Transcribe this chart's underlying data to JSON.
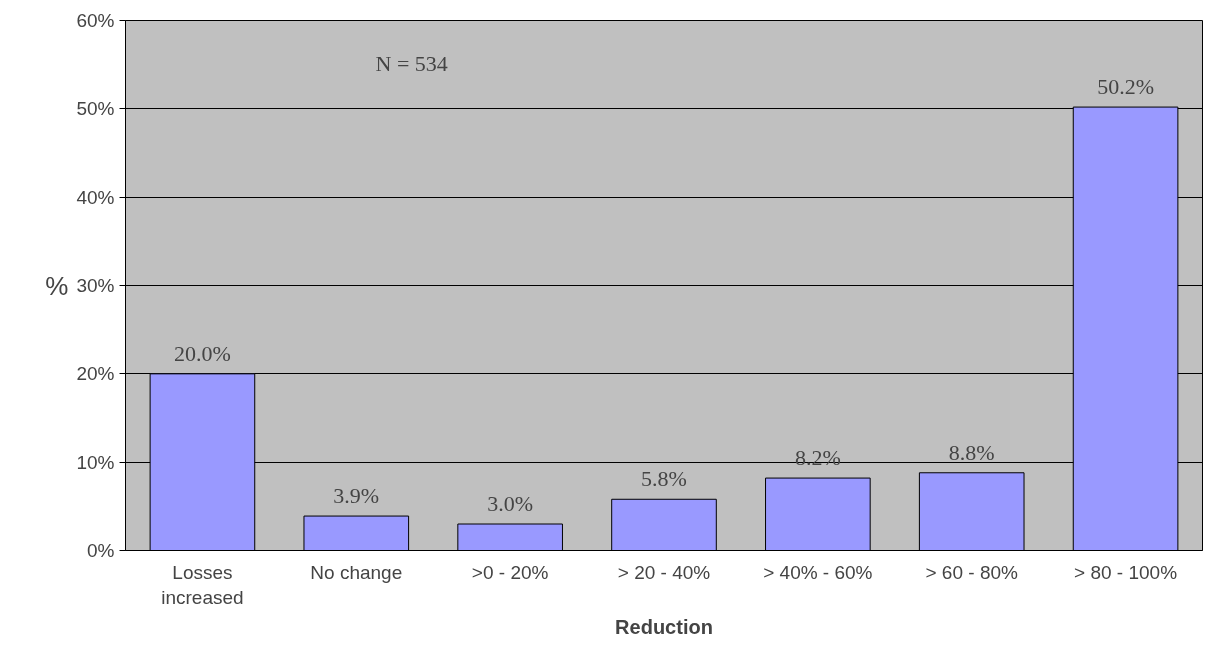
{
  "chart_data": {
    "type": "bar",
    "xlabel": "Reduction",
    "ylabel": "%",
    "categories": [
      "Losses\nincreased",
      "No change",
      ">0 - 20%",
      "> 20 - 40%",
      "> 40% - 60%",
      "> 60 - 80%",
      "> 80 - 100%"
    ],
    "values": [
      20.0,
      3.9,
      3.0,
      5.8,
      8.2,
      8.8,
      50.2
    ],
    "value_labels": [
      "20.0%",
      "3.9%",
      "3.0%",
      "5.8%",
      "8.2%",
      "8.8%",
      "50.2%"
    ],
    "color": "#9999ff",
    "ylim": [
      0,
      60
    ],
    "yticks": [
      {
        "value": 0,
        "label": "0%"
      },
      {
        "value": 10,
        "label": "10%"
      },
      {
        "value": 20,
        "label": "20%"
      },
      {
        "value": 30,
        "label": "30%"
      },
      {
        "value": 40,
        "label": "40%"
      },
      {
        "value": 50,
        "label": "50%"
      },
      {
        "value": 60,
        "label": "60%"
      }
    ],
    "grid": "y",
    "annotations": [
      "N = 534"
    ]
  }
}
